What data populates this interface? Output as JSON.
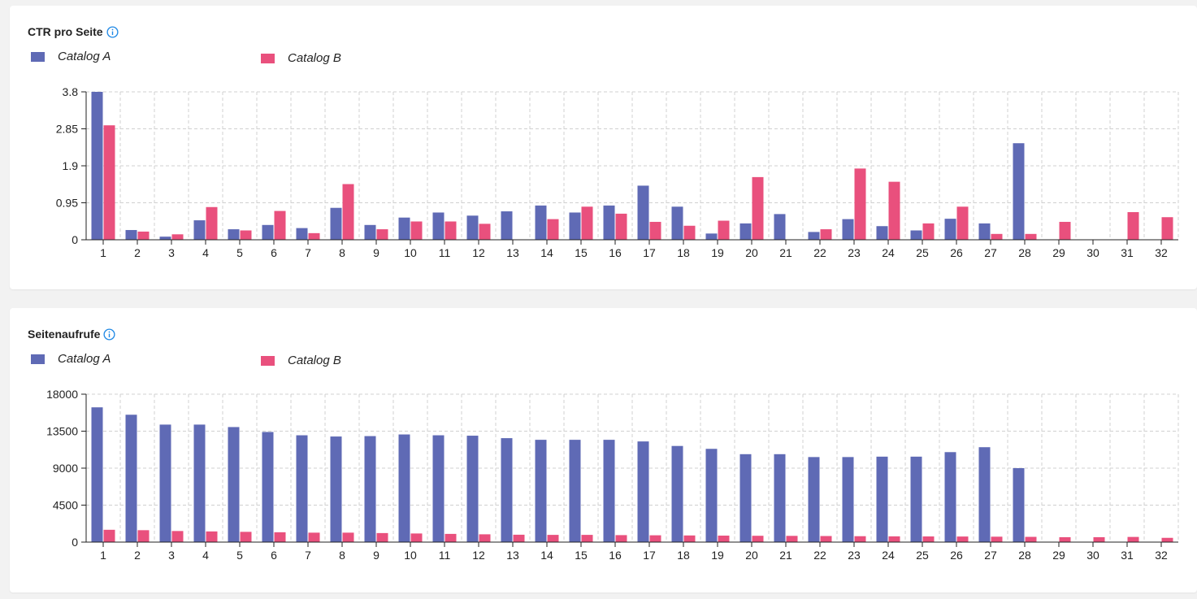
{
  "colors": {
    "catalog_a": "#5f6ab5",
    "catalog_b": "#e9507d",
    "grid": "#d0d0d0",
    "info": "#1e88e5"
  },
  "panels": [
    {
      "title": "CTR pro Seite",
      "legend": [
        {
          "label": "Catalog A"
        },
        {
          "label": "Catalog B"
        }
      ]
    },
    {
      "title": "Seitenaufrufe",
      "legend": [
        {
          "label": "Catalog A"
        },
        {
          "label": "Catalog B"
        }
      ]
    }
  ],
  "chart_data": [
    {
      "type": "bar",
      "title": "CTR pro Seite",
      "categories": [
        "1",
        "2",
        "3",
        "4",
        "5",
        "6",
        "7",
        "8",
        "9",
        "10",
        "11",
        "12",
        "13",
        "14",
        "15",
        "16",
        "17",
        "18",
        "19",
        "20",
        "21",
        "22",
        "23",
        "24",
        "25",
        "26",
        "27",
        "28",
        "29",
        "30",
        "31",
        "32"
      ],
      "yticks": [
        "0",
        "0.95",
        "1.9",
        "2.85",
        "3.8"
      ],
      "ylim": [
        0,
        3.8
      ],
      "grid": true,
      "series": [
        {
          "name": "Catalog A",
          "values": [
            3.8,
            0.25,
            0.08,
            0.5,
            0.27,
            0.38,
            0.3,
            0.82,
            0.38,
            0.57,
            0.7,
            0.62,
            0.73,
            0.88,
            0.7,
            0.88,
            1.39,
            0.85,
            0.16,
            0.42,
            0.66,
            0.2,
            0.53,
            0.35,
            0.24,
            0.54,
            0.42,
            2.48,
            0,
            0,
            0,
            0
          ]
        },
        {
          "name": "Catalog B",
          "values": [
            2.94,
            0.21,
            0.14,
            0.84,
            0.24,
            0.74,
            0.17,
            1.43,
            0.27,
            0.47,
            0.47,
            0.41,
            0,
            0.53,
            0.85,
            0.67,
            0.46,
            0.36,
            0.49,
            1.61,
            0,
            0.27,
            1.83,
            1.49,
            0.42,
            0.85,
            0.15,
            0.15,
            0.46,
            0,
            0.71,
            0.58
          ]
        }
      ]
    },
    {
      "type": "bar",
      "title": "Seitenaufrufe",
      "categories": [
        "1",
        "2",
        "3",
        "4",
        "5",
        "6",
        "7",
        "8",
        "9",
        "10",
        "11",
        "12",
        "13",
        "14",
        "15",
        "16",
        "17",
        "18",
        "19",
        "20",
        "21",
        "22",
        "23",
        "24",
        "25",
        "26",
        "27",
        "28",
        "29",
        "30",
        "31",
        "32"
      ],
      "yticks": [
        "0",
        "4500",
        "9000",
        "13500",
        "18000"
      ],
      "ylim": [
        0,
        18000
      ],
      "grid": true,
      "series": [
        {
          "name": "Catalog A",
          "values": [
            16400,
            15500,
            14300,
            14300,
            14000,
            13400,
            13000,
            12850,
            12900,
            13100,
            13000,
            12950,
            12650,
            12450,
            12450,
            12450,
            12250,
            11700,
            11350,
            10700,
            10700,
            10350,
            10350,
            10400,
            10400,
            10950,
            11550,
            9000,
            0,
            0,
            0,
            0
          ]
        },
        {
          "name": "Catalog B",
          "values": [
            1500,
            1450,
            1350,
            1300,
            1250,
            1200,
            1150,
            1150,
            1100,
            1050,
            1000,
            950,
            900,
            880,
            880,
            850,
            830,
            810,
            790,
            770,
            760,
            740,
            720,
            700,
            690,
            680,
            660,
            640,
            600,
            600,
            630,
            520
          ]
        }
      ]
    }
  ]
}
